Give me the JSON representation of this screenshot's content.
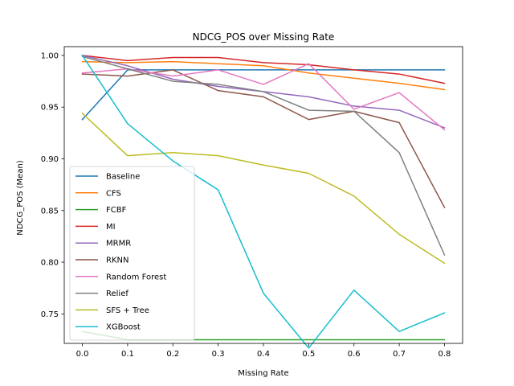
{
  "chart_data": {
    "type": "line",
    "title": "NDCG_POS over Missing Rate",
    "xlabel": "Missing Rate",
    "ylabel": "NDCG_POS (Mean)",
    "x": [
      0.0,
      0.1,
      0.2,
      0.3,
      0.4,
      0.5,
      0.6,
      0.7,
      0.8
    ],
    "xlim": [
      -0.04,
      0.84
    ],
    "ylim": [
      0.7215,
      1.0085
    ],
    "x_ticks": [
      "0.0",
      "0.1",
      "0.2",
      "0.3",
      "0.4",
      "0.5",
      "0.6",
      "0.7",
      "0.8"
    ],
    "y_ticks": [
      "0.75",
      "0.80",
      "0.85",
      "0.90",
      "0.95",
      "1.00"
    ],
    "grid": false,
    "legend_position": "lower-left",
    "series": [
      {
        "name": "Baseline",
        "color": "#1f77b4",
        "values": [
          0.938,
          0.986,
          0.986,
          0.986,
          0.986,
          0.986,
          0.986,
          0.986,
          0.986
        ]
      },
      {
        "name": "CFS",
        "color": "#ff7f0e",
        "values": [
          0.994,
          0.993,
          0.994,
          0.992,
          0.99,
          0.983,
          0.978,
          0.973,
          0.967
        ]
      },
      {
        "name": "FCBF",
        "color": "#2ca02c",
        "values": [
          0.733,
          0.725,
          0.725,
          0.725,
          0.725,
          0.725,
          0.725,
          0.725,
          0.725
        ]
      },
      {
        "name": "MI",
        "color": "#d62728",
        "values": [
          1.0,
          0.995,
          0.998,
          0.998,
          0.993,
          0.991,
          0.986,
          0.982,
          0.973
        ]
      },
      {
        "name": "MRMR",
        "color": "#9467bd",
        "values": [
          1.0,
          0.99,
          0.977,
          0.97,
          0.965,
          0.96,
          0.951,
          0.947,
          0.93
        ]
      },
      {
        "name": "RKNN",
        "color": "#8c564b",
        "values": [
          0.982,
          0.98,
          0.986,
          0.966,
          0.96,
          0.938,
          0.946,
          0.935,
          0.853
        ]
      },
      {
        "name": "Random Forest",
        "color": "#e377c2",
        "values": [
          0.983,
          0.987,
          0.98,
          0.986,
          0.972,
          0.992,
          0.948,
          0.964,
          0.928
        ]
      },
      {
        "name": "Relief",
        "color": "#7f7f7f",
        "values": [
          0.999,
          0.987,
          0.975,
          0.972,
          0.965,
          0.947,
          0.946,
          0.906,
          0.807
        ]
      },
      {
        "name": "SFS + Tree",
        "color": "#bcbd22",
        "values": [
          0.944,
          0.903,
          0.906,
          0.903,
          0.894,
          0.886,
          0.864,
          0.827,
          0.799
        ]
      },
      {
        "name": "XGBoost",
        "color": "#17becf",
        "values": [
          1.0,
          0.934,
          0.898,
          0.87,
          0.77,
          0.717,
          0.773,
          0.733,
          0.751
        ]
      }
    ]
  }
}
